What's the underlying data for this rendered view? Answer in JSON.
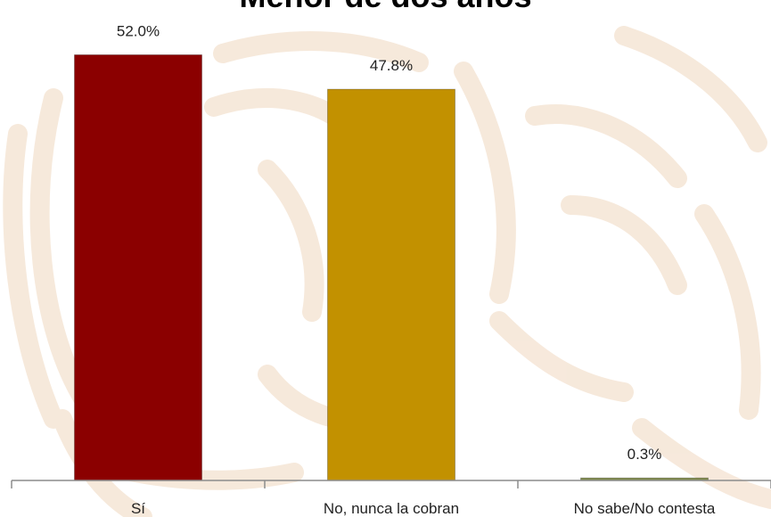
{
  "chart_data": {
    "type": "bar",
    "title": "Menor de dos años",
    "xlabel": "",
    "ylabel": "",
    "categories": [
      "Sí",
      "No, nunca la cobran",
      "No sabe/No contesta"
    ],
    "values": [
      52.0,
      47.8,
      0.3
    ],
    "data_labels": [
      "52.0%",
      "47.8%",
      "0.3%"
    ],
    "colors": [
      "#8b0000",
      "#c29100",
      "#7f8a4a"
    ],
    "ylim": [
      0,
      53.8
    ],
    "grid": false,
    "legend": "none"
  }
}
